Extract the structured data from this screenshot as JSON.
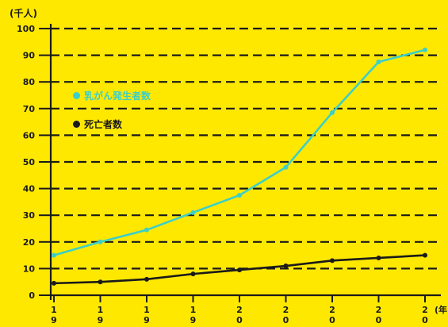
{
  "chart_data": {
    "type": "line",
    "y_unit_label": "(千人)",
    "x_unit_label": "(年",
    "x_tick_labels": [
      [
        "1",
        "9"
      ],
      [
        "1",
        "9"
      ],
      [
        "1",
        "9"
      ],
      [
        "1",
        "9"
      ],
      [
        "2",
        "0"
      ],
      [
        "2",
        "0"
      ],
      [
        "2",
        "0"
      ],
      [
        "2",
        "0"
      ],
      [
        "2",
        "0"
      ]
    ],
    "y_ticks": [
      0,
      10,
      20,
      30,
      40,
      50,
      60,
      70,
      80,
      90,
      100
    ],
    "ylim": [
      0,
      100
    ],
    "grid": true,
    "legend_position": "upper-left",
    "series": [
      {
        "name": "乳がん発生者数",
        "color": "#3CCFC8",
        "values": [
          15,
          20,
          24.5,
          31,
          37.5,
          48,
          68.5,
          87.5,
          92
        ]
      },
      {
        "name": "死亡者数",
        "color": "#1a1a1a",
        "values": [
          4.5,
          5,
          6,
          8,
          9.5,
          11,
          13,
          14,
          15
        ]
      }
    ]
  }
}
